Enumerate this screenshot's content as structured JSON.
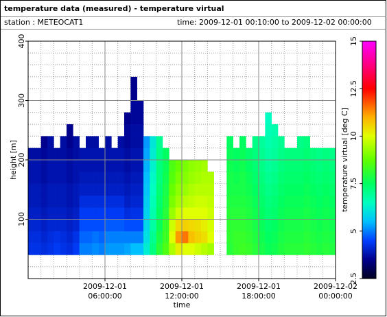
{
  "header": {
    "title": "temperature data (measured) - temperature virtual",
    "station": "station : METEOCAT1",
    "time": "time: 2009-12-01 00:10:00 to 2009-12-02 00:00:00"
  },
  "chart_data": {
    "type": "heatmap",
    "xlabel": "time",
    "ylabel": "height [m]",
    "xlim": [
      "2009-12-01 00:00:00",
      "2009-12-02 00:00:00"
    ],
    "xticks": [
      "2009-12-01 06:00:00",
      "2009-12-01 12:00:00",
      "2009-12-01 18:00:00",
      "2009-12-02 00:00:00"
    ],
    "ylim": [
      0,
      400
    ],
    "yticks": [
      100,
      200,
      300,
      400
    ],
    "grid": true,
    "bin_height": 20,
    "bin_duration_minutes": 30,
    "y": [
      50,
      70,
      90,
      110,
      130,
      150,
      170,
      190,
      210,
      230,
      250,
      270,
      290,
      310,
      330
    ],
    "x": [
      "2009-12-01 00:15:00",
      "2009-12-01 00:45:00",
      "2009-12-01 01:15:00",
      "2009-12-01 01:45:00",
      "2009-12-01 02:15:00",
      "2009-12-01 02:45:00",
      "2009-12-01 03:15:00",
      "2009-12-01 03:45:00",
      "2009-12-01 04:15:00",
      "2009-12-01 04:45:00",
      "2009-12-01 05:15:00",
      "2009-12-01 05:45:00",
      "2009-12-01 06:15:00",
      "2009-12-01 06:45:00",
      "2009-12-01 07:15:00",
      "2009-12-01 07:45:00",
      "2009-12-01 08:15:00",
      "2009-12-01 08:45:00",
      "2009-12-01 09:15:00",
      "2009-12-01 09:45:00",
      "2009-12-01 10:15:00",
      "2009-12-01 10:45:00",
      "2009-12-01 11:15:00",
      "2009-12-01 11:45:00",
      "2009-12-01 12:15:00",
      "2009-12-01 12:45:00",
      "2009-12-01 13:15:00",
      "2009-12-01 13:45:00",
      "2009-12-01 14:15:00",
      "2009-12-01 14:45:00",
      "2009-12-01 15:15:00",
      "2009-12-01 15:45:00",
      "2009-12-01 16:15:00",
      "2009-12-01 16:45:00",
      "2009-12-01 17:15:00",
      "2009-12-01 17:45:00",
      "2009-12-01 18:15:00",
      "2009-12-01 18:45:00",
      "2009-12-01 19:15:00",
      "2009-12-01 19:45:00",
      "2009-12-01 20:15:00",
      "2009-12-01 20:45:00",
      "2009-12-01 21:15:00",
      "2009-12-01 21:45:00",
      "2009-12-01 22:15:00",
      "2009-12-01 22:45:00",
      "2009-12-01 23:15:00",
      "2009-12-01 23:45:00"
    ],
    "z": [
      [
        4.3,
        4.2,
        4.1,
        4.0,
        3.9,
        3.9,
        3.8,
        3.8,
        3.7,
        null,
        null,
        null,
        null,
        null,
        null
      ],
      [
        4.3,
        4.2,
        4.1,
        4.0,
        3.9,
        3.9,
        3.8,
        3.8,
        3.7,
        null,
        null,
        null,
        null,
        null,
        null
      ],
      [
        4.2,
        4.1,
        4.0,
        3.9,
        3.8,
        3.8,
        3.7,
        3.7,
        3.6,
        3.5,
        null,
        null,
        null,
        null,
        null
      ],
      [
        4.3,
        4.2,
        4.1,
        4.0,
        3.9,
        3.9,
        3.8,
        3.8,
        3.7,
        3.7,
        null,
        null,
        null,
        null,
        null
      ],
      [
        4.4,
        4.3,
        4.1,
        4.0,
        3.9,
        3.9,
        3.8,
        3.8,
        3.7,
        null,
        null,
        null,
        null,
        null,
        null
      ],
      [
        4.3,
        4.2,
        4.1,
        4.0,
        3.9,
        3.9,
        3.8,
        3.8,
        3.7,
        3.7,
        null,
        null,
        null,
        null,
        null
      ],
      [
        4.2,
        4.1,
        4.0,
        3.9,
        3.8,
        3.8,
        3.7,
        3.7,
        3.6,
        3.5,
        3.5,
        null,
        null,
        null,
        null
      ],
      [
        4.4,
        4.3,
        4.1,
        4.0,
        3.9,
        3.9,
        3.8,
        3.8,
        3.7,
        3.7,
        null,
        null,
        null,
        null,
        null
      ],
      [
        5.0,
        4.8,
        4.6,
        4.4,
        4.2,
        4.0,
        3.9,
        3.8,
        3.8,
        null,
        null,
        null,
        null,
        null,
        null
      ],
      [
        5.0,
        4.8,
        4.6,
        4.4,
        4.2,
        4.0,
        3.9,
        3.8,
        3.8,
        3.7,
        null,
        null,
        null,
        null,
        null
      ],
      [
        5.1,
        4.9,
        4.6,
        4.4,
        4.2,
        4.0,
        3.9,
        3.8,
        3.8,
        3.7,
        null,
        null,
        null,
        null,
        null
      ],
      [
        5.0,
        4.8,
        4.6,
        4.4,
        4.2,
        4.0,
        3.9,
        3.8,
        3.8,
        null,
        null,
        null,
        null,
        null,
        null
      ],
      [
        5.2,
        5.0,
        4.7,
        4.4,
        4.2,
        4.0,
        3.9,
        3.8,
        3.8,
        3.7,
        null,
        null,
        null,
        null,
        null
      ],
      [
        5.2,
        5.0,
        4.7,
        4.4,
        4.2,
        4.0,
        3.9,
        3.8,
        3.8,
        null,
        null,
        null,
        null,
        null,
        null
      ],
      [
        5.2,
        5.0,
        4.7,
        4.4,
        4.2,
        4.0,
        3.9,
        3.8,
        3.8,
        3.7,
        null,
        null,
        null,
        null,
        null
      ],
      [
        5.3,
        5.0,
        4.6,
        4.2,
        4.0,
        3.9,
        3.8,
        3.7,
        3.7,
        3.6,
        3.6,
        3.5,
        null,
        null,
        null
      ],
      [
        5.5,
        5.0,
        4.6,
        4.3,
        4.1,
        4.0,
        3.9,
        3.8,
        3.8,
        3.7,
        3.7,
        3.6,
        3.6,
        3.5,
        3.5
      ],
      [
        5.5,
        5.0,
        4.6,
        4.3,
        4.1,
        4.0,
        3.9,
        3.8,
        3.8,
        3.7,
        3.7,
        3.6,
        3.6,
        null,
        null
      ],
      [
        6.2,
        6.0,
        5.9,
        5.8,
        5.7,
        5.6,
        5.5,
        5.4,
        5.3,
        5.2,
        null,
        null,
        null,
        null,
        null
      ],
      [
        7.2,
        7.0,
        6.8,
        6.7,
        6.6,
        6.5,
        6.4,
        6.3,
        6.2,
        6.1,
        null,
        null,
        null,
        null,
        null
      ],
      [
        8.0,
        7.8,
        7.6,
        7.5,
        7.4,
        7.3,
        7.2,
        7.2,
        7.1,
        7.0,
        null,
        null,
        null,
        null,
        null
      ],
      [
        8.5,
        8.3,
        8.2,
        8.0,
        7.9,
        7.8,
        7.7,
        7.6,
        7.5,
        null,
        null,
        null,
        null,
        null,
        null
      ],
      [
        9.5,
        10.0,
        9.8,
        9.3,
        9.0,
        8.8,
        8.6,
        8.5,
        null,
        null,
        null,
        null,
        null,
        null,
        null
      ],
      [
        10.2,
        11.2,
        10.5,
        9.8,
        9.4,
        9.2,
        9.0,
        8.8,
        null,
        null,
        null,
        null,
        null,
        null,
        null
      ],
      [
        10.0,
        11.5,
        10.6,
        10.0,
        9.6,
        9.3,
        9.1,
        9.0,
        null,
        null,
        null,
        null,
        null,
        null,
        null
      ],
      [
        10.0,
        10.8,
        10.5,
        10.0,
        9.7,
        9.5,
        9.3,
        9.2,
        null,
        null,
        null,
        null,
        null,
        null,
        null
      ],
      [
        9.8,
        10.6,
        10.4,
        10.0,
        9.8,
        9.6,
        9.4,
        9.3,
        null,
        null,
        null,
        null,
        null,
        null,
        null
      ],
      [
        9.6,
        10.4,
        10.2,
        10.0,
        9.8,
        9.6,
        9.5,
        9.4,
        null,
        null,
        null,
        null,
        null,
        null,
        null
      ],
      [
        9.4,
        10.0,
        9.9,
        9.8,
        9.7,
        9.6,
        9.5,
        null,
        null,
        null,
        null,
        null,
        null,
        null,
        null
      ],
      [
        null,
        null,
        null,
        null,
        null,
        null,
        null,
        null,
        null,
        null,
        null,
        null,
        null,
        null,
        null
      ],
      [
        null,
        null,
        null,
        null,
        null,
        null,
        null,
        null,
        null,
        null,
        null,
        null,
        null,
        null,
        null
      ],
      [
        8.0,
        8.1,
        8.1,
        8.0,
        7.9,
        7.8,
        7.8,
        7.7,
        7.6,
        7.5,
        null,
        null,
        null,
        null,
        null
      ],
      [
        8.2,
        8.2,
        8.1,
        8.0,
        7.9,
        7.8,
        7.7,
        7.6,
        7.5,
        null,
        null,
        null,
        null,
        null,
        null
      ],
      [
        8.3,
        8.2,
        8.1,
        8.0,
        7.9,
        7.8,
        7.8,
        7.7,
        7.6,
        7.5,
        null,
        null,
        null,
        null,
        null
      ],
      [
        8.2,
        8.1,
        8.0,
        7.9,
        7.8,
        7.7,
        7.6,
        7.5,
        7.4,
        null,
        null,
        null,
        null,
        null,
        null
      ],
      [
        8.0,
        7.9,
        7.8,
        7.7,
        7.6,
        7.5,
        7.4,
        7.3,
        7.2,
        7.1,
        null,
        null,
        null,
        null,
        null
      ],
      [
        7.8,
        7.7,
        7.6,
        7.5,
        7.4,
        7.3,
        7.2,
        7.1,
        7.0,
        6.9,
        null,
        null,
        null,
        null,
        null
      ],
      [
        7.6,
        7.5,
        7.4,
        7.3,
        7.2,
        7.1,
        7.0,
        6.9,
        6.8,
        6.7,
        6.6,
        6.5,
        null,
        null,
        null
      ],
      [
        7.7,
        7.6,
        7.5,
        7.4,
        7.3,
        7.2,
        7.1,
        7.0,
        6.9,
        6.8,
        6.7,
        null,
        null,
        null,
        null
      ],
      [
        7.9,
        7.8,
        7.7,
        7.6,
        7.5,
        7.4,
        7.3,
        7.2,
        7.1,
        7.0,
        null,
        null,
        null,
        null,
        null
      ],
      [
        8.0,
        7.9,
        7.8,
        7.7,
        7.6,
        7.5,
        7.4,
        7.3,
        7.2,
        null,
        null,
        null,
        null,
        null,
        null
      ],
      [
        8.0,
        7.9,
        7.8,
        7.7,
        7.6,
        7.5,
        7.4,
        7.3,
        7.2,
        null,
        null,
        null,
        null,
        null,
        null
      ],
      [
        8.0,
        7.9,
        7.8,
        7.7,
        7.6,
        7.5,
        7.4,
        7.3,
        7.2,
        7.1,
        null,
        null,
        null,
        null,
        null
      ],
      [
        8.1,
        8.0,
        7.9,
        7.8,
        7.7,
        7.6,
        7.5,
        7.4,
        7.3,
        7.2,
        null,
        null,
        null,
        null,
        null
      ],
      [
        8.0,
        7.9,
        7.8,
        7.7,
        7.6,
        7.5,
        7.4,
        7.3,
        7.2,
        null,
        null,
        null,
        null,
        null,
        null
      ],
      [
        7.9,
        7.8,
        7.7,
        7.6,
        7.5,
        7.4,
        7.3,
        7.2,
        7.1,
        null,
        null,
        null,
        null,
        null,
        null
      ],
      [
        8.0,
        7.9,
        7.8,
        7.7,
        7.6,
        7.5,
        7.4,
        7.3,
        7.2,
        null,
        null,
        null,
        null,
        null,
        null
      ],
      [
        7.9,
        7.8,
        7.7,
        7.6,
        7.5,
        7.4,
        7.3,
        7.2,
        7.1,
        null,
        null,
        null,
        null,
        null,
        null
      ]
    ],
    "colorbar": {
      "label": "temperature virtual [deg C]",
      "lim": [
        2.5,
        15
      ],
      "ticks": [
        2.5,
        5,
        7.5,
        10,
        12.5,
        15
      ]
    },
    "colormap": [
      {
        "value": 2.5,
        "color": "#000020"
      },
      {
        "value": 3.5,
        "color": "#00008c"
      },
      {
        "value": 4.5,
        "color": "#0040ff"
      },
      {
        "value": 5.5,
        "color": "#00c0ff"
      },
      {
        "value": 6.5,
        "color": "#00ffc0"
      },
      {
        "value": 7.5,
        "color": "#00ff60"
      },
      {
        "value": 8.75,
        "color": "#60ff00"
      },
      {
        "value": 10,
        "color": "#e0ff00"
      },
      {
        "value": 11,
        "color": "#ffb000"
      },
      {
        "value": 12.5,
        "color": "#ff0000"
      },
      {
        "value": 13.75,
        "color": "#ff0080"
      },
      {
        "value": 15,
        "color": "#ff00ff"
      }
    ]
  }
}
